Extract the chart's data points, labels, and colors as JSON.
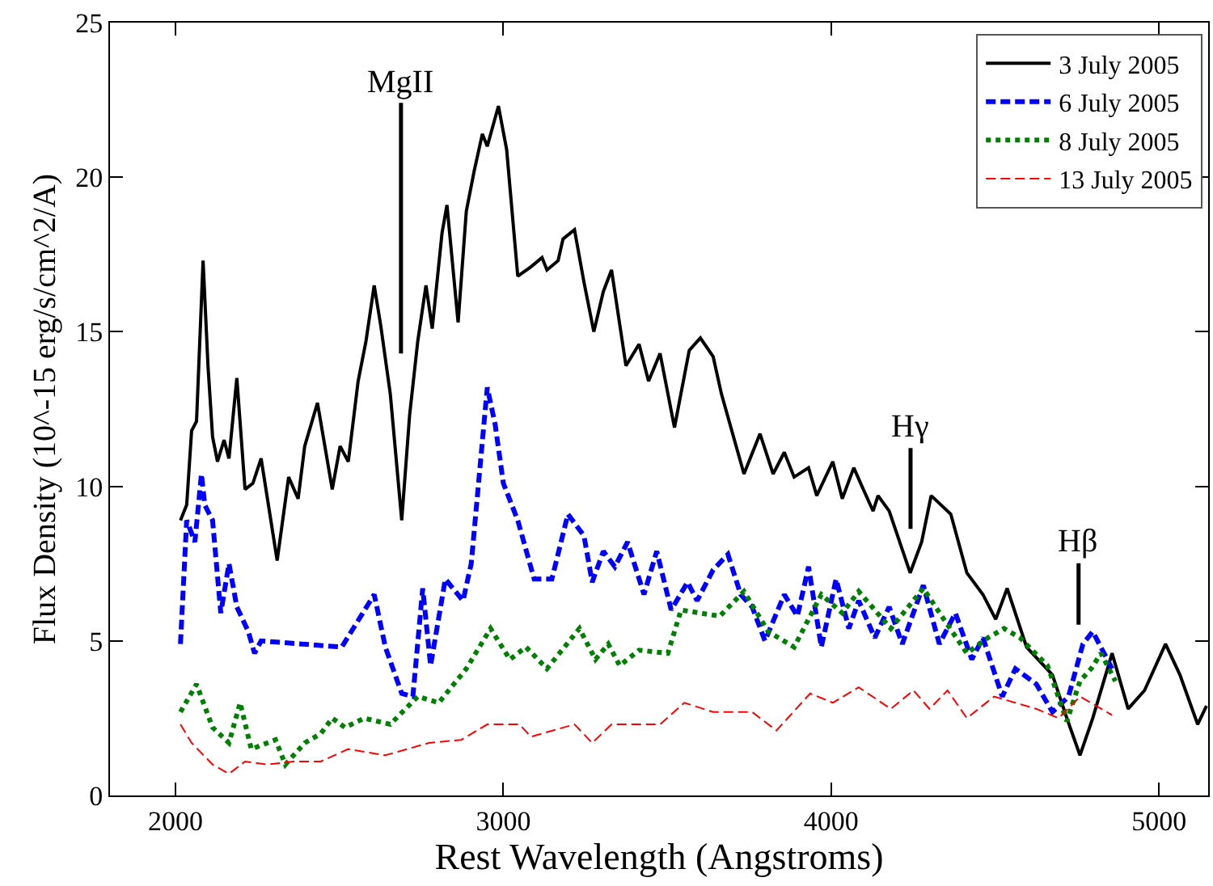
{
  "chart_data": {
    "type": "line",
    "xlabel": "Rest Wavelength (Angstroms)",
    "ylabel": "Flux Density (10^-15 erg/s/cm^2/A)",
    "xlim": [
      1800,
      5150
    ],
    "xticks": [
      2000,
      3000,
      4000,
      5000
    ],
    "ylim": [
      0,
      25
    ],
    "yticks": [
      0,
      5,
      10,
      15,
      20,
      25
    ],
    "legend": "top right",
    "marker": "none",
    "annotations": [
      "MgII",
      "Hγ",
      "Hβ"
    ],
    "series": [
      {
        "name": "3 July 2005",
        "color": "#000000",
        "line_style": "solid",
        "x": [
          2015,
          2034,
          2049,
          2064,
          2084,
          2099,
          2113,
          2128,
          2148,
          2163,
          2187,
          2212,
          2236,
          2261,
          2310,
          2345,
          2374,
          2394,
          2433,
          2478,
          2502,
          2527,
          2557,
          2581,
          2606,
          2626,
          2655,
          2690,
          2714,
          2739,
          2764,
          2783,
          2813,
          2828,
          2862,
          2887,
          2911,
          2936,
          2951,
          2985,
          3010,
          3044,
          3084,
          3118,
          3133,
          3167,
          3182,
          3217,
          3246,
          3276,
          3305,
          3330,
          3374,
          3414,
          3443,
          3478,
          3522,
          3567,
          3601,
          3640,
          3665,
          3734,
          3783,
          3823,
          3857,
          3887,
          3931,
          3956,
          4005,
          4034,
          4069,
          4094,
          4128,
          4143,
          4177,
          4241,
          4276,
          4305,
          4365,
          4414,
          4463,
          4502,
          4537,
          4596,
          4675,
          4719,
          4759,
          4798,
          4857,
          4906,
          4956,
          5020,
          5064,
          5118,
          5145
        ],
        "values": [
          8.9,
          9.4,
          11.8,
          12.1,
          17.3,
          13.9,
          11.6,
          10.8,
          11.5,
          10.9,
          13.5,
          9.9,
          10.1,
          10.9,
          7.6,
          10.3,
          9.6,
          11.3,
          12.7,
          9.9,
          11.3,
          10.8,
          13.4,
          14.7,
          16.5,
          15.2,
          13.0,
          8.9,
          12.3,
          14.7,
          16.5,
          15.1,
          18.2,
          19.1,
          15.3,
          18.9,
          20.2,
          21.4,
          21.0,
          22.3,
          20.9,
          16.8,
          17.1,
          17.4,
          17.0,
          17.3,
          18.0,
          18.3,
          16.6,
          15.0,
          16.3,
          17.0,
          13.9,
          14.6,
          13.4,
          14.3,
          11.9,
          14.4,
          14.8,
          14.2,
          13.0,
          10.4,
          11.7,
          10.4,
          11.1,
          10.3,
          10.6,
          9.7,
          10.8,
          9.6,
          10.6,
          10.0,
          9.2,
          9.7,
          9.2,
          7.2,
          8.2,
          9.7,
          9.1,
          7.2,
          6.5,
          5.7,
          6.7,
          4.8,
          3.9,
          2.5,
          1.3,
          2.5,
          4.6,
          2.8,
          3.4,
          4.9,
          3.9,
          2.3,
          2.9
        ]
      },
      {
        "name": "6 July 2005",
        "color": "#0000ff",
        "line_style": "dashed",
        "x": [
          2015,
          2034,
          2059,
          2079,
          2089,
          2113,
          2138,
          2163,
          2187,
          2222,
          2241,
          2261,
          2507,
          2542,
          2606,
          2640,
          2690,
          2724,
          2754,
          2778,
          2823,
          2877,
          2902,
          2951,
          2975,
          3000,
          3044,
          3094,
          3148,
          3197,
          3246,
          3271,
          3305,
          3340,
          3379,
          3429,
          3468,
          3512,
          3562,
          3591,
          3640,
          3685,
          3724,
          3759,
          3798,
          3857,
          3897,
          3931,
          3970,
          4015,
          4054,
          4084,
          4133,
          4177,
          4217,
          4281,
          4330,
          4379,
          4429,
          4463,
          4522,
          4562,
          4626,
          4675,
          4724,
          4768,
          4798,
          4857
        ],
        "values": [
          4.9,
          8.9,
          8.2,
          10.4,
          9.4,
          8.9,
          5.9,
          7.5,
          6.1,
          5.3,
          4.6,
          5.0,
          4.8,
          5.4,
          6.5,
          4.8,
          3.3,
          3.2,
          6.7,
          4.2,
          7.0,
          6.3,
          7.5,
          13.2,
          12.0,
          10.1,
          8.9,
          7.0,
          7.0,
          9.1,
          8.4,
          6.9,
          7.9,
          7.4,
          8.2,
          6.5,
          7.9,
          6.0,
          6.9,
          6.3,
          7.3,
          7.8,
          6.5,
          6.1,
          5.0,
          6.5,
          5.8,
          7.4,
          4.8,
          7.0,
          5.4,
          6.3,
          5.1,
          6.1,
          4.9,
          6.8,
          4.9,
          5.9,
          4.4,
          5.1,
          3.2,
          4.1,
          3.6,
          2.7,
          3.2,
          4.9,
          5.3,
          4.1
        ]
      },
      {
        "name": "8 July 2005",
        "color": "#008000",
        "line_style": "dotted",
        "x": [
          2015,
          2064,
          2113,
          2163,
          2197,
          2231,
          2305,
          2335,
          2394,
          2443,
          2478,
          2517,
          2576,
          2655,
          2739,
          2803,
          2887,
          2961,
          3020,
          3069,
          3133,
          3232,
          3281,
          3320,
          3355,
          3414,
          3502,
          3542,
          3660,
          3734,
          3808,
          3887,
          3970,
          4034,
          4084,
          4182,
          4281,
          4350,
          4414,
          4478,
          4527,
          4576,
          4660,
          4719,
          4759,
          4793,
          4823,
          4867
        ],
        "values": [
          2.7,
          3.6,
          2.2,
          1.7,
          3.0,
          1.5,
          1.8,
          1.0,
          1.7,
          2.0,
          2.5,
          2.2,
          2.5,
          2.3,
          3.2,
          3.0,
          4.1,
          5.4,
          4.4,
          4.8,
          4.1,
          5.4,
          4.4,
          4.9,
          4.2,
          4.7,
          4.6,
          6.0,
          5.8,
          6.6,
          5.3,
          4.8,
          6.5,
          5.9,
          6.6,
          5.4,
          6.7,
          5.6,
          4.6,
          5.1,
          5.4,
          5.1,
          4.2,
          2.4,
          3.7,
          4.1,
          4.6,
          3.7
        ]
      },
      {
        "name": "13 July 2005",
        "color": "#ff0000",
        "line_style": "dashed",
        "x": [
          2015,
          2049,
          2113,
          2163,
          2212,
          2281,
          2360,
          2443,
          2527,
          2640,
          2773,
          2872,
          2951,
          3049,
          3084,
          3217,
          3271,
          3330,
          3478,
          3552,
          3640,
          3759,
          3833,
          3936,
          4005,
          4084,
          4182,
          4251,
          4300,
          4355,
          4414,
          4497,
          4626,
          4694,
          4759,
          4857
        ],
        "values": [
          2.3,
          1.7,
          1.0,
          0.7,
          1.1,
          1.0,
          1.1,
          1.1,
          1.5,
          1.3,
          1.7,
          1.8,
          2.3,
          2.3,
          1.9,
          2.3,
          1.7,
          2.3,
          2.3,
          3.0,
          2.7,
          2.7,
          2.1,
          3.3,
          3.0,
          3.5,
          2.8,
          3.4,
          2.8,
          3.4,
          2.5,
          3.2,
          2.8,
          2.5,
          3.2,
          2.6
        ]
      }
    ]
  }
}
